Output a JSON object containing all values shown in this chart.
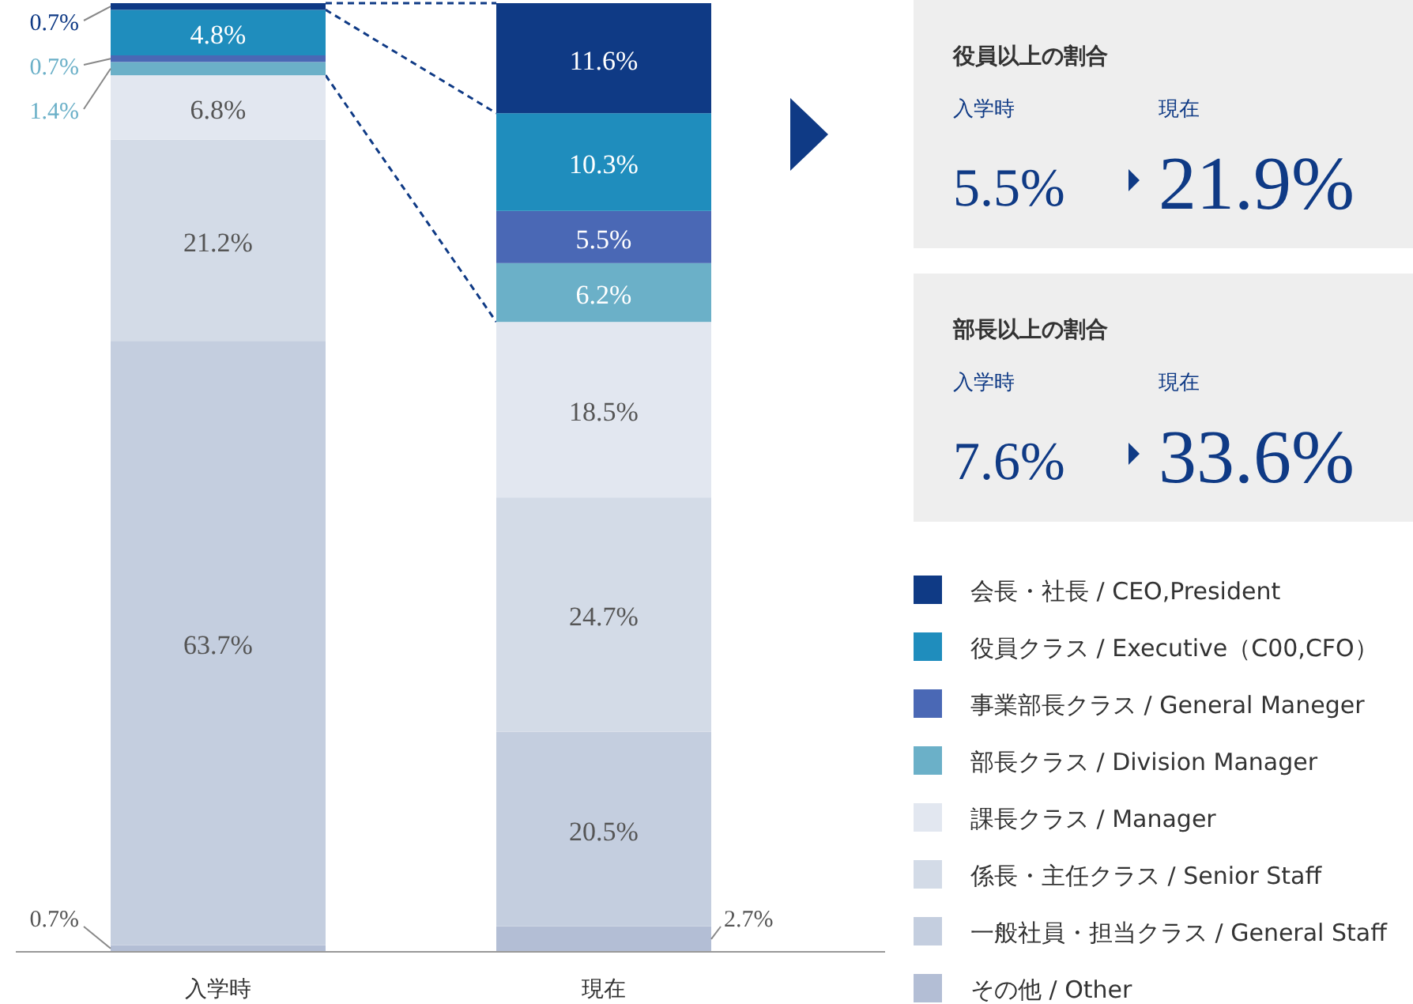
{
  "chart_data": [
    {
      "type": "bar",
      "stacked": true,
      "legend": "right",
      "categories": [
        "入学時",
        "現在"
      ],
      "tick_labels": "x",
      "series": [
        {
          "name": "その他 / Other",
          "color": "#b3bed5",
          "values": [
            0.7,
            2.7
          ],
          "value_labels": [
            "0.7%",
            "2.7%"
          ]
        },
        {
          "name": "一般社員・担当クラス / General Staff",
          "color": "#c4cedf",
          "values": [
            63.7,
            20.5
          ],
          "value_labels": [
            "63.7%",
            "20.5%"
          ]
        },
        {
          "name": "係長・主任クラス / Senior Staff",
          "color": "#d3dbe7",
          "values": [
            21.2,
            24.7
          ],
          "value_labels": [
            "21.2%",
            "24.7%"
          ]
        },
        {
          "name": "課長クラス / Manager",
          "color": "#e2e7f0",
          "values": [
            6.8,
            18.5
          ],
          "value_labels": [
            "6.8%",
            "18.5%"
          ]
        },
        {
          "name": "部長クラス / Division Manager",
          "color": "#6bb0c8",
          "values": [
            1.4,
            6.2
          ],
          "value_labels": [
            "1.4%",
            "6.2%"
          ]
        },
        {
          "name": "事業部長クラス / General Maneger",
          "color": "#4a68b5",
          "values": [
            0.7,
            5.5
          ],
          "value_labels": [
            "0.7%",
            "5.5%"
          ]
        },
        {
          "name": "役員クラス / Executive（C00,CFO）",
          "color": "#1f8dbd",
          "values": [
            4.8,
            10.3
          ],
          "value_labels": [
            "4.8%",
            "10.3%"
          ]
        },
        {
          "name": "会長・社長 / CEO,President",
          "color": "#0f3a85",
          "values": [
            0.7,
            11.6
          ],
          "value_labels": [
            "0.7%",
            "11.6%"
          ]
        }
      ]
    },
    {
      "type": "other",
      "title": "役員以上の割合",
      "annotations": [
        "入学時",
        "5.5%",
        "現在",
        "21.9%"
      ]
    },
    {
      "type": "other",
      "title": "部長以上の割合",
      "annotations": [
        "入学時",
        "7.6%",
        "現在",
        "33.6%"
      ]
    }
  ]
}
